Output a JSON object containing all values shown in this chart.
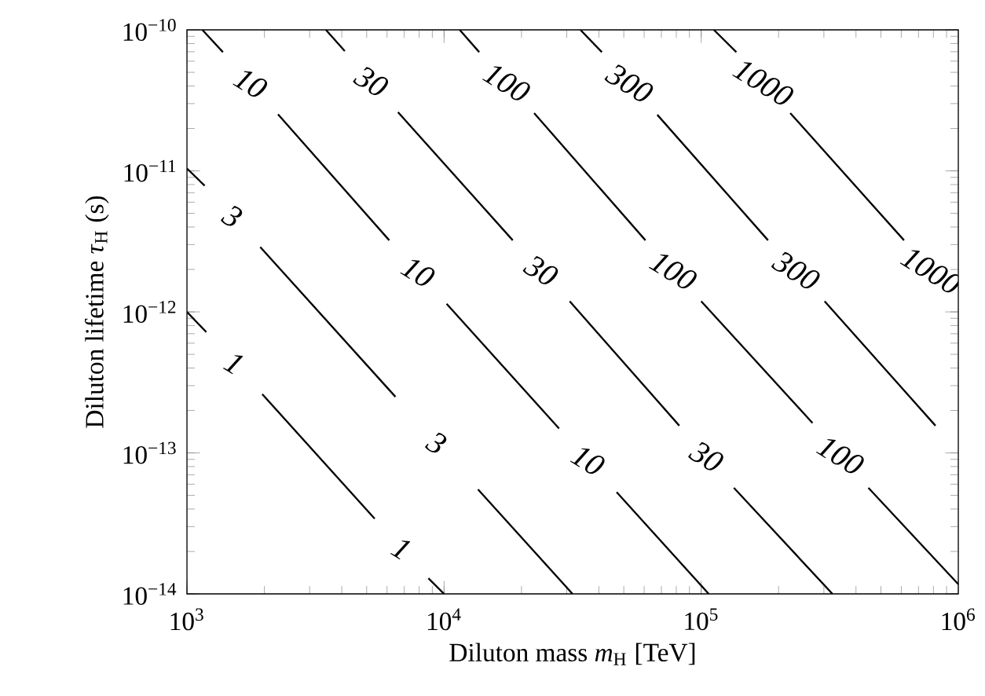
{
  "chart_data": {
    "type": "line",
    "xlabel": "Diluton mass *m*$_{H}$ [TeV]",
    "ylabel": "Diluton lifetime *τ*$_{H}$ (s)",
    "log": "xy",
    "xlim": [
      1000,
      1000000
    ],
    "ylim": [
      1e-14,
      1e-10
    ],
    "xticks": [
      {
        "value": 1000,
        "label": "10$^{3}$"
      },
      {
        "value": 10000,
        "label": "10$^{4}$"
      },
      {
        "value": 100000,
        "label": "10$^{5}$"
      },
      {
        "value": 1000000,
        "label": "10$^{6}$"
      }
    ],
    "yticks": [
      {
        "value": 1e-14,
        "label": "10$^{−14}$"
      },
      {
        "value": 1e-13,
        "label": "10$^{−13}$"
      },
      {
        "value": 1e-12,
        "label": "10$^{−12}$"
      },
      {
        "value": 1e-11,
        "label": "10$^{−11}$"
      },
      {
        "value": 1e-10,
        "label": "10$^{−10}$"
      }
    ],
    "grid": false,
    "marker": "none",
    "line_style": "solid",
    "series": [
      {
        "name": "1",
        "color": "#000000",
        "x": [
          1000,
          1189,
          null,
          1963,
          5370,
          null,
          8690,
          10000
        ],
        "values": [
          1e-12,
          7.19e-13,
          null,
          2.61e-13,
          3.42e-14,
          null,
          1.29e-14,
          1e-14
        ]
      },
      {
        "name": "3",
        "color": "#000000",
        "x": [
          1000,
          1172,
          null,
          1928,
          6470,
          null,
          13550,
          31600
        ],
        "values": [
          1.04e-11,
          7.85e-12,
          null,
          2.88e-12,
          2.5e-13,
          null,
          5.51e-14,
          1e-14
        ]
      },
      {
        "name": "10",
        "color": "#000000",
        "x": [
          1148,
          1380,
          null,
          2260,
          6120,
          null,
          10230,
          28000,
          null,
          46900,
          107000
        ],
        "values": [
          1e-10,
          6.95e-11,
          null,
          2.52e-11,
          3.22e-12,
          null,
          1.14e-12,
          1.49e-13,
          null,
          5.27e-14,
          1e-14
        ]
      },
      {
        "name": "30",
        "color": "#000000",
        "x": [
          3470,
          4110,
          null,
          6620,
          18500,
          null,
          30800,
          82200,
          null,
          134000,
          324000
        ],
        "values": [
          1e-10,
          7.08e-11,
          null,
          2.61e-11,
          3.22e-12,
          null,
          1.19e-12,
          1.56e-13,
          null,
          5.65e-14,
          1e-14
        ]
      },
      {
        "name": "100",
        "color": "#000000",
        "x": [
          11500,
          13700,
          null,
          22400,
          60700,
          null,
          100000,
          271000,
          null,
          447000,
          1000000
        ],
        "values": [
          1e-10,
          6.95e-11,
          null,
          2.57e-11,
          3.22e-12,
          null,
          1.19e-12,
          1.63e-13,
          null,
          5.65e-14,
          1.17e-14
        ]
      },
      {
        "name": "300",
        "color": "#000000",
        "x": [
          33900,
          41100,
          null,
          67500,
          182000,
          null,
          302000,
          815000
        ],
        "values": [
          1e-10,
          6.95e-11,
          null,
          2.5e-11,
          3.22e-12,
          null,
          1.19e-12,
          1.56e-13
        ]
      },
      {
        "name": "1000",
        "color": "#000000",
        "x": [
          112000,
          137000,
          null,
          222000,
          615000,
          null
        ],
        "values": [
          1e-10,
          6.95e-11,
          null,
          2.57e-11,
          3.22e-12,
          null
        ]
      }
    ]
  }
}
